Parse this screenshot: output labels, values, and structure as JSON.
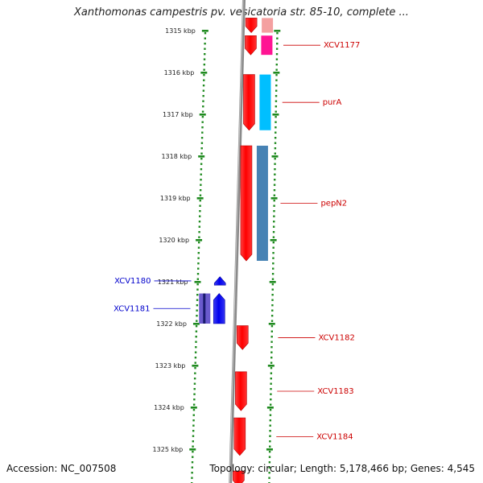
{
  "header": {
    "title": "Xanthomonas campestris pv. vesicatoria str. 85-10, complete ..."
  },
  "footer": {
    "accession": "Accession: NC_007508",
    "summary": "Topology: circular; Length: 5,178,466 bp; Genes: 4,545"
  },
  "colors": {
    "backbone": "#8a8a8a",
    "tick": "#1f8a1f",
    "forward_gene": "#ff0000",
    "reverse_gene": "#0000ee",
    "label_forward": "#cc0000",
    "label_reverse": "#0000cc"
  },
  "scale": {
    "unit": "kbp",
    "ticks": [
      {
        "value": 1315,
        "label": "1315 kbp"
      },
      {
        "value": 1316,
        "label": "1316 kbp"
      },
      {
        "value": 1317,
        "label": "1317 kbp"
      },
      {
        "value": 1318,
        "label": "1318 kbp"
      },
      {
        "value": 1319,
        "label": "1319 kbp"
      },
      {
        "value": 1320,
        "label": "1320 kbp"
      },
      {
        "value": 1321,
        "label": "1321 kbp"
      },
      {
        "value": 1322,
        "label": "1322 kbp"
      },
      {
        "value": 1323,
        "label": "1323 kbp"
      },
      {
        "value": 1324,
        "label": "1324 kbp"
      },
      {
        "value": 1325,
        "label": "1325 kbp"
      }
    ]
  },
  "genes": [
    {
      "name": "XCV1177",
      "strand": "forward",
      "start": 1315.12,
      "end": 1315.58,
      "cds_color": "#ff1493",
      "labeled": true
    },
    {
      "name": "purA",
      "strand": "forward",
      "start": 1316.05,
      "end": 1317.38,
      "cds_color": "#00bfff",
      "labeled": true
    },
    {
      "name": "pepN2",
      "strand": "forward",
      "start": 1317.75,
      "end": 1320.5,
      "cds_color": "#4682b4",
      "labeled": true
    },
    {
      "name": "XCV1180",
      "strand": "reverse",
      "start": 1320.88,
      "end": 1321.08,
      "cds_color": "",
      "labeled": true
    },
    {
      "name": "XCV1181",
      "strand": "reverse",
      "start": 1321.28,
      "end": 1322.0,
      "cds_color": "#6a5acd",
      "labeled": true
    },
    {
      "name": "XCV1182",
      "strand": "forward",
      "start": 1322.05,
      "end": 1322.62,
      "cds_color": "",
      "labeled": true
    },
    {
      "name": "XCV1183",
      "strand": "forward",
      "start": 1323.15,
      "end": 1324.08,
      "cds_color": "",
      "labeled": true
    },
    {
      "name": "XCV1184",
      "strand": "forward",
      "start": 1324.25,
      "end": 1325.15,
      "cds_color": "",
      "labeled": true
    },
    {
      "name": "",
      "strand": "forward",
      "start": 1325.52,
      "end": 1325.9,
      "cds_color": "",
      "labeled": false
    },
    {
      "name": "",
      "strand": "forward",
      "start": 1314.7,
      "end": 1315.05,
      "cds_color": "#f4a0a0",
      "labeled": false
    }
  ]
}
